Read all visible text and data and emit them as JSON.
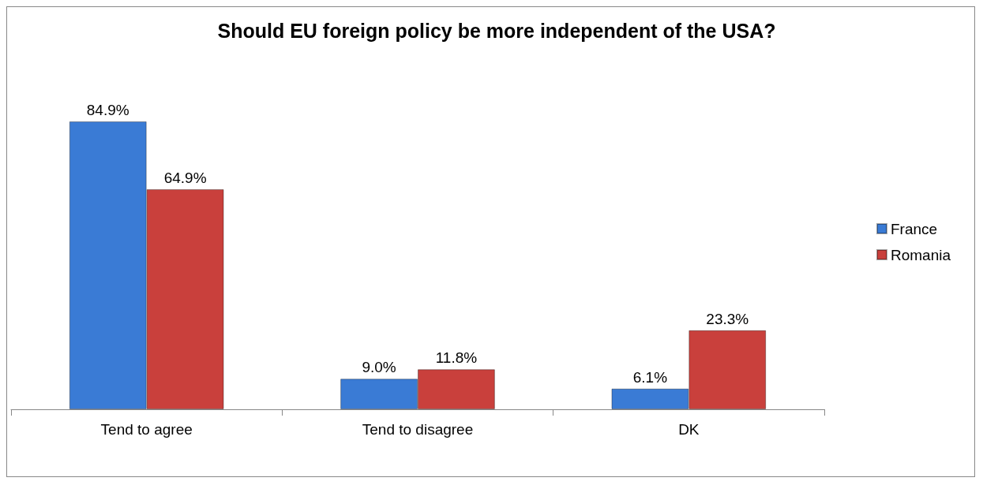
{
  "chart_data": {
    "type": "bar",
    "title": "Should EU foreign policy be more independent of the USA?",
    "categories": [
      "Tend to agree",
      "Tend to disagree",
      "DK"
    ],
    "series": [
      {
        "name": "France",
        "color": "#3a7bd5",
        "values": [
          84.9,
          9.0,
          6.1
        ],
        "value_labels": [
          "84.9%",
          "9.0%",
          "6.1%"
        ]
      },
      {
        "name": "Romania",
        "color": "#c9403c",
        "values": [
          64.9,
          11.8,
          23.3
        ],
        "value_labels": [
          "64.9%",
          "11.8%",
          "23.3%"
        ]
      }
    ],
    "legend": "right",
    "grid": false
  }
}
